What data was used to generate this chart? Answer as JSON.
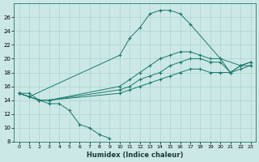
{
  "xlabel": "Humidex (Indice chaleur)",
  "bg_color": "#cce8e6",
  "grid_color": "#aad4d0",
  "line_color": "#1a7a6e",
  "xlim": [
    -0.5,
    23.5
  ],
  "ylim": [
    8,
    28
  ],
  "xticks": [
    0,
    1,
    2,
    3,
    4,
    5,
    6,
    7,
    8,
    9,
    10,
    11,
    12,
    13,
    14,
    15,
    16,
    17,
    18,
    19,
    20,
    21,
    22,
    23
  ],
  "yticks": [
    8,
    10,
    12,
    14,
    16,
    18,
    20,
    22,
    24,
    26
  ],
  "series": [
    {
      "x": [
        0,
        1,
        2,
        3,
        4,
        5,
        6,
        7,
        8,
        9
      ],
      "y": [
        15,
        15,
        14,
        13.5,
        13.5,
        12.5,
        10.5,
        10,
        9,
        8.5
      ]
    },
    {
      "x": [
        0,
        1,
        2,
        3,
        10,
        11,
        12,
        13,
        14,
        15,
        16,
        17,
        18,
        19,
        20,
        21,
        22,
        23
      ],
      "y": [
        15,
        14.5,
        14,
        14,
        15,
        15.5,
        16,
        16.5,
        17,
        17.5,
        18,
        18.5,
        18.5,
        18,
        18,
        18,
        18.5,
        19
      ]
    },
    {
      "x": [
        0,
        1,
        2,
        3,
        10,
        11,
        12,
        13,
        14,
        15,
        16,
        17,
        18,
        19,
        20,
        21,
        22,
        23
      ],
      "y": [
        15,
        14.5,
        14,
        14,
        15.5,
        16,
        17,
        17.5,
        18,
        19,
        19.5,
        20,
        20,
        19.5,
        19.5,
        18,
        19,
        19.5
      ]
    },
    {
      "x": [
        0,
        1,
        2,
        3,
        10,
        11,
        12,
        13,
        14,
        15,
        16,
        17,
        18,
        19,
        20,
        21,
        22,
        23
      ],
      "y": [
        15,
        14.5,
        14,
        14,
        16,
        17,
        18,
        19,
        20,
        20.5,
        21,
        21,
        20.5,
        20,
        20,
        18,
        19,
        19.5
      ]
    },
    {
      "x": [
        0,
        1,
        10,
        11,
        12,
        13,
        14,
        15,
        16,
        17,
        20,
        22,
        23
      ],
      "y": [
        15,
        14.5,
        20.5,
        23,
        24.5,
        26.5,
        27,
        27,
        26.5,
        25,
        20,
        19,
        19
      ]
    }
  ]
}
